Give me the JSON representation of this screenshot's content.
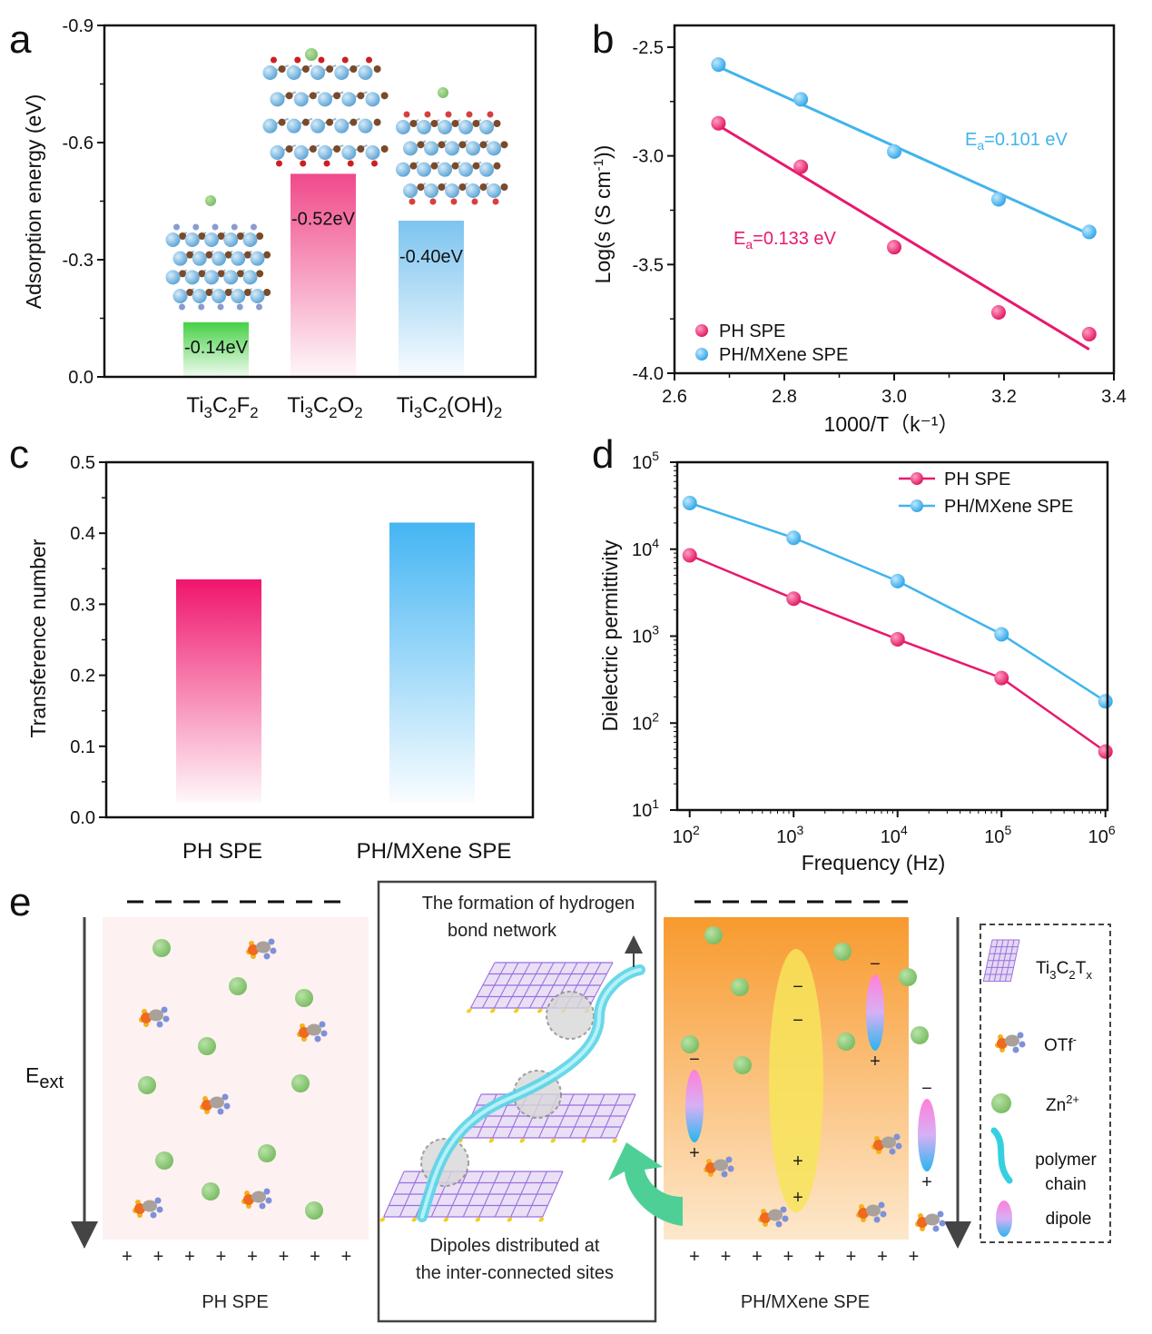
{
  "colors": {
    "pink": "#e8186d",
    "blue": "#41b4ec",
    "green": "#52cf52",
    "pink_bar": "#f27ba5",
    "blue_bar": "#7cc7ef",
    "zn": "#8bc77b",
    "orange_bg": "#f7a443",
    "arrow_green": "#4ecf96"
  },
  "panels": {
    "a": "a",
    "b": "b",
    "c": "c",
    "d": "d",
    "e": "e"
  },
  "chart_data": [
    {
      "id": "a",
      "type": "bar",
      "ylabel": "Adsorption energy (eV)",
      "ylim": [
        0,
        -0.9
      ],
      "yticks": [
        "0.0",
        "-0.3",
        "-0.6",
        "-0.9"
      ],
      "categories": [
        {
          "main": "Ti",
          "parts": [
            [
              "Ti",
              ""
            ],
            [
              "3",
              "sub"
            ],
            [
              "C",
              ""
            ],
            [
              "2",
              "sub"
            ],
            [
              "F",
              ""
            ],
            [
              "2",
              "sub"
            ]
          ]
        },
        {
          "main": "Ti",
          "parts": [
            [
              "Ti",
              ""
            ],
            [
              "3",
              "sub"
            ],
            [
              "C",
              ""
            ],
            [
              "2",
              "sub"
            ],
            [
              "O",
              ""
            ],
            [
              "2",
              "sub"
            ]
          ]
        },
        {
          "main": "Ti",
          "parts": [
            [
              "Ti",
              ""
            ],
            [
              "3",
              "sub"
            ],
            [
              "C",
              ""
            ],
            [
              "2",
              "sub"
            ],
            [
              "(OH)",
              ""
            ],
            [
              "2",
              "sub"
            ]
          ]
        }
      ],
      "category_text": [
        "Ti3C2F2",
        "Ti3C2O2",
        "Ti3C2(OH)2"
      ],
      "values": [
        -0.14,
        -0.52,
        -0.4
      ],
      "labels": [
        "-0.14eV",
        "-0.52eV",
        "-0.40eV"
      ],
      "bar_colors": [
        "#52cf52",
        "#f27ba5",
        "#7cc7ef"
      ]
    },
    {
      "id": "b",
      "type": "scatter",
      "xlabel": "1000/T（k⁻¹）",
      "ylabel_main": "Log(s (S cm",
      "ylabel_sup": "-1",
      "ylabel_end": "))",
      "xlim": [
        2.6,
        3.4
      ],
      "ylim": [
        -4.0,
        -2.4
      ],
      "xticks": [
        "2.6",
        "2.8",
        "3.0",
        "3.2",
        "3.4"
      ],
      "yticks": [
        "-4.0",
        "-3.5",
        "-3.0",
        "-2.5"
      ],
      "series": [
        {
          "name": "PH SPE",
          "x": [
            2.68,
            2.83,
            3.0,
            3.19,
            3.355
          ],
          "y": [
            -2.85,
            -3.05,
            -3.42,
            -3.72,
            -3.82
          ],
          "fit": [
            [
              2.68,
              -2.86
            ],
            [
              3.355,
              -3.89
            ]
          ],
          "annot_main": "E",
          "annot_sub": "a",
          "annot_rest": "=0.133 eV"
        },
        {
          "name": "PH/MXene SPE",
          "x": [
            2.68,
            2.83,
            3.0,
            3.19,
            3.355
          ],
          "y": [
            -2.58,
            -2.74,
            -2.98,
            -3.2,
            -3.35
          ],
          "fit": [
            [
              2.68,
              -2.59
            ],
            [
              3.355,
              -3.36
            ]
          ],
          "annot_main": "E",
          "annot_sub": "a",
          "annot_rest": "=0.101 eV"
        }
      ]
    },
    {
      "id": "c",
      "type": "bar",
      "ylabel": "Transference number",
      "ylim": [
        0.0,
        0.5
      ],
      "yticks": [
        "0.0",
        "0.1",
        "0.2",
        "0.3",
        "0.4",
        "0.5"
      ],
      "categories": [
        "PH SPE",
        "PH/MXene SPE"
      ],
      "values": [
        0.335,
        0.415
      ],
      "bar_colors": [
        "#f0156c",
        "#4ab9f4"
      ]
    },
    {
      "id": "d",
      "type": "line",
      "xlabel": "Frequency (Hz)",
      "ylabel": "Dielectric permittivity",
      "log_x": true,
      "log_y": true,
      "xlim_exp": [
        2,
        6
      ],
      "ylim_exp": [
        1,
        5
      ],
      "xticks_exp": [
        "2",
        "3",
        "4",
        "5",
        "6"
      ],
      "yticks_exp": [
        "1",
        "2",
        "3",
        "4",
        "5"
      ],
      "tick_base": "10",
      "series": [
        {
          "name": "PH SPE",
          "x": [
            100,
            1000,
            10000,
            100000,
            1000000
          ],
          "y": [
            8500,
            2700,
            920,
            330,
            47
          ]
        },
        {
          "name": "PH/MXene SPE",
          "x": [
            100,
            1000,
            10000,
            100000,
            1000000
          ],
          "y": [
            34000,
            13500,
            4300,
            1050,
            178
          ]
        }
      ]
    }
  ],
  "schematic": {
    "e_ext": "E",
    "e_ext_sub": "ext",
    "left_label": "PH SPE",
    "right_label": "PH/MXene SPE",
    "center_top_1": "The formation of hydrogen",
    "center_top_2": "bond network",
    "center_bottom_1": "Dipoles distributed at",
    "center_bottom_2": "the inter-connected sites",
    "plus": "+",
    "minus": "−",
    "legend": {
      "mxene_main": "Ti",
      "mxene_parts": [
        [
          "Ti",
          ""
        ],
        [
          "3",
          "sub"
        ],
        [
          "C",
          ""
        ],
        [
          "2",
          "sub"
        ],
        [
          "T",
          ""
        ],
        [
          "x",
          "sub"
        ]
      ],
      "otf": "OTf",
      "otf_sup": "-",
      "zn": "Zn",
      "zn_sup": "2+",
      "polymer_1": "polymer",
      "polymer_2": "chain",
      "dipole": "dipole"
    }
  }
}
